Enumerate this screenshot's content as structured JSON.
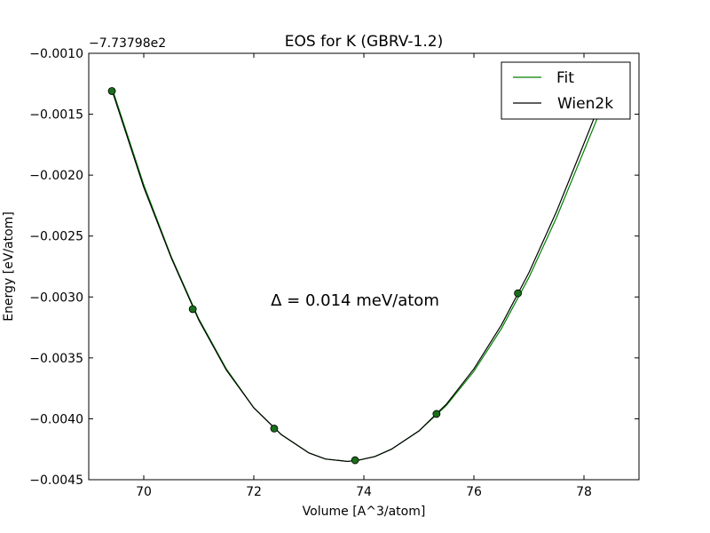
{
  "chart_data": {
    "type": "line",
    "title": "EOS for K (GBRV-1.2)",
    "xlabel": "Volume [A^3/atom]",
    "ylabel": "Energy [eV/atom]",
    "y_offset_label": "−7.73798e2",
    "xlim": [
      69.0,
      79.0
    ],
    "ylim": [
      -0.0045,
      -0.001
    ],
    "x_ticks": [
      70,
      72,
      74,
      76,
      78
    ],
    "x_tick_labels": [
      "70",
      "72",
      "74",
      "76",
      "78"
    ],
    "y_ticks": [
      -0.0045,
      -0.004,
      -0.0035,
      -0.003,
      -0.0025,
      -0.002,
      -0.0015,
      -0.001
    ],
    "y_tick_labels": [
      "−0.0045",
      "−0.0040",
      "−0.0035",
      "−0.0030",
      "−0.0025",
      "−0.0020",
      "−0.0015",
      "−0.0010"
    ],
    "grid": false,
    "legend_position": "top-right",
    "annotation": "Δ = 0.014 meV/atom",
    "points": {
      "x": [
        69.42,
        70.89,
        72.37,
        73.84,
        75.32,
        76.8
      ],
      "y": [
        -0.00131,
        -0.0031,
        -0.00408,
        -0.00434,
        -0.00396,
        -0.00297
      ],
      "color": "#1a6e1a"
    },
    "series": [
      {
        "name": "Fit",
        "color": "#008000",
        "x": [
          69.42,
          70.0,
          70.5,
          71.0,
          71.5,
          72.0,
          72.5,
          73.0,
          73.3,
          73.5,
          73.7,
          73.9,
          74.2,
          74.5,
          75.0,
          75.5,
          76.0,
          76.5,
          77.0,
          77.5,
          78.0,
          78.3
        ],
        "y": [
          -0.00128,
          -0.00208,
          -0.00267,
          -0.00318,
          -0.00359,
          -0.00391,
          -0.00413,
          -0.00428,
          -0.00433,
          -0.00434,
          -0.00435,
          -0.00434,
          -0.00431,
          -0.00425,
          -0.0041,
          -0.00389,
          -0.00361,
          -0.00326,
          -0.00284,
          -0.00235,
          -0.0018,
          -0.00147
        ]
      },
      {
        "name": "Wien2k",
        "color": "#000000",
        "x": [
          69.42,
          70.0,
          70.5,
          71.0,
          71.5,
          72.0,
          72.5,
          73.0,
          73.3,
          73.5,
          73.7,
          73.9,
          74.2,
          74.5,
          75.0,
          75.5,
          76.0,
          76.5,
          77.0,
          77.5,
          78.0,
          78.3
        ],
        "y": [
          -0.0013,
          -0.0021,
          -0.00268,
          -0.00319,
          -0.0036,
          -0.00391,
          -0.00413,
          -0.00428,
          -0.00433,
          -0.00434,
          -0.00435,
          -0.00434,
          -0.00431,
          -0.00425,
          -0.0041,
          -0.00388,
          -0.00359,
          -0.00323,
          -0.0028,
          -0.0023,
          -0.00174,
          -0.0014
        ]
      }
    ]
  }
}
